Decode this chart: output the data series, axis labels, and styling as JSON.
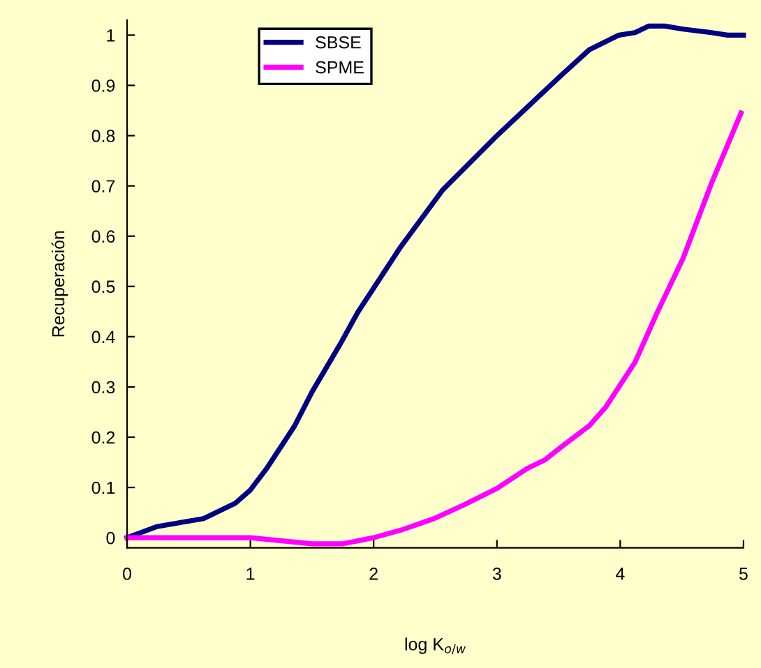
{
  "chart_data": {
    "type": "line",
    "xlabel": "log K$_{o/w}$",
    "ylabel": "Recuperación",
    "xlim": [
      0,
      5
    ],
    "ylim": [
      -0.02,
      1.03
    ],
    "xticks": [
      0,
      1,
      2,
      3,
      4,
      5
    ],
    "yticks": [
      0,
      0.1,
      0.2,
      0.3,
      0.4,
      0.5,
      0.6,
      0.7,
      0.8,
      0.9,
      1
    ],
    "grid": false,
    "legend": "top",
    "marker": "none",
    "line_style": "solid",
    "series": [
      {
        "name": "SBSE",
        "color": "#000080",
        "x": [
          0,
          0.24,
          0.62,
          0.88,
          1.0,
          1.13,
          1.36,
          1.5,
          1.74,
          1.87,
          2.22,
          2.56,
          3.0,
          3.53,
          3.75,
          3.99,
          4.12,
          4.23,
          4.36,
          4.51,
          4.74,
          4.87,
          5.0
        ],
        "values": [
          0,
          0.022,
          0.038,
          0.069,
          0.095,
          0.137,
          0.223,
          0.29,
          0.39,
          0.448,
          0.579,
          0.692,
          0.8,
          0.922,
          0.971,
          1.0,
          1.005,
          1.018,
          1.018,
          1.012,
          1.005,
          1.0,
          1.0
        ]
      },
      {
        "name": "SPME",
        "color": "#ff00ff",
        "x": [
          0,
          1.0,
          1.5,
          1.75,
          2.0,
          2.22,
          2.49,
          2.73,
          3.0,
          3.24,
          3.39,
          3.53,
          3.75,
          3.88,
          4.12,
          4.3,
          4.51,
          4.74,
          4.98
        ],
        "values": [
          0,
          0,
          -0.012,
          -0.012,
          0,
          0.015,
          0.038,
          0.065,
          0.098,
          0.137,
          0.155,
          0.182,
          0.223,
          0.259,
          0.349,
          0.448,
          0.556,
          0.705,
          0.845
        ]
      }
    ]
  }
}
